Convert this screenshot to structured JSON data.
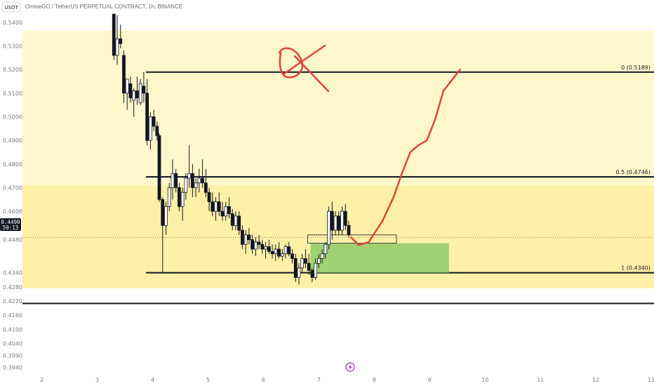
{
  "header": {
    "title": "OmiseGO / TetherUS PERPETUAL CONTRACT, 1h, BINANCE",
    "unit": "USDT"
  },
  "price_tag": {
    "price": "0.4490",
    "countdown": "59:13"
  },
  "colors": {
    "zone_upper": "#fff7cc",
    "zone_lower": "#fff0a8",
    "green_box": "#8fcc6a",
    "pen": "#e0443a",
    "candle": "#131722",
    "current_line": "#131722"
  },
  "icons": {
    "bottom": "lightning-icon"
  },
  "chart_data": {
    "type": "candlestick",
    "title": "OmiseGO / TetherUS PERPETUAL CONTRACT, 1h, BINANCE",
    "y_range": [
      0.392,
      0.5435
    ],
    "x_range": [
      1.65,
      13.05
    ],
    "y_ticks": [
      "0.5400",
      "0.5300",
      "0.5200",
      "0.5100",
      "0.5000",
      "0.4900",
      "0.4800",
      "0.4700",
      "0.4600",
      "0.4480",
      "0.4340",
      "0.4280",
      "0.4220",
      "0.4160",
      "0.4100",
      "0.4040",
      "0.3990",
      "0.3940"
    ],
    "x_ticks": [
      "2",
      "3",
      "4",
      "5",
      "6",
      "7",
      "8",
      "9",
      "10",
      "11",
      "12",
      "13"
    ],
    "current_price": 0.449,
    "zones": [
      {
        "name": "upper-zone",
        "x": [
          1.65,
          13.05
        ],
        "y": [
          0.4275,
          0.5365
        ],
        "color": "#fff7cc"
      },
      {
        "name": "lower-zone",
        "x": [
          1.65,
          13.05
        ],
        "y": [
          0.4275,
          0.471
        ],
        "color": "#fff0a8"
      }
    ],
    "fib_levels": [
      {
        "label": "0 (0.5189)",
        "price": 0.5189,
        "x_start": 3.88
      },
      {
        "label": "0.5 (0.4746)",
        "price": 0.4746,
        "x_start": 3.88
      },
      {
        "label": "1 (0.4340)",
        "price": 0.434,
        "x_start": 3.88
      }
    ],
    "support_line": {
      "price": 0.421,
      "x_start": 1.65
    },
    "green_box": {
      "x": [
        6.85,
        9.35
      ],
      "y": [
        0.434,
        0.4465
      ]
    },
    "range_box": {
      "x": [
        6.8,
        8.4
      ],
      "y": [
        0.4465,
        0.45
      ]
    },
    "drawing_path": [
      [
        7.58,
        0.449
      ],
      [
        7.72,
        0.4457
      ],
      [
        7.9,
        0.447
      ],
      [
        8.15,
        0.456
      ],
      [
        8.35,
        0.466
      ],
      [
        8.5,
        0.476
      ],
      [
        8.65,
        0.485
      ],
      [
        8.8,
        0.488
      ],
      [
        8.95,
        0.49
      ],
      [
        9.1,
        0.499
      ],
      [
        9.25,
        0.511
      ],
      [
        9.45,
        0.517
      ],
      [
        9.55,
        0.52
      ]
    ],
    "x_mark": [
      [
        [
          8.0,
          0.5128
        ],
        [
          9.35,
          0.5306
        ]
      ]
    ],
    "candles": [
      [
        3.3,
        0.5435,
        0.5435,
        0.524,
        0.526
      ],
      [
        3.36,
        0.526,
        0.543,
        0.522,
        0.533
      ],
      [
        3.42,
        0.533,
        0.539,
        0.529,
        0.531
      ],
      [
        3.48,
        0.526,
        0.528,
        0.506,
        0.51
      ],
      [
        3.54,
        0.51,
        0.516,
        0.503,
        0.516
      ],
      [
        3.6,
        0.514,
        0.517,
        0.506,
        0.508
      ],
      [
        3.66,
        0.507,
        0.512,
        0.5,
        0.511
      ],
      [
        3.72,
        0.511,
        0.517,
        0.505,
        0.508
      ],
      [
        3.78,
        0.506,
        0.516,
        0.505,
        0.514
      ],
      [
        3.84,
        0.513,
        0.519,
        0.506,
        0.51
      ],
      [
        3.9,
        0.51,
        0.516,
        0.488,
        0.49
      ],
      [
        3.96,
        0.49,
        0.502,
        0.486,
        0.5
      ],
      [
        4.02,
        0.5,
        0.503,
        0.494,
        0.496
      ],
      [
        4.08,
        0.496,
        0.498,
        0.49,
        0.492
      ],
      [
        4.12,
        0.492,
        0.493,
        0.464,
        0.465
      ],
      [
        4.18,
        0.465,
        0.466,
        0.434,
        0.454
      ],
      [
        4.24,
        0.454,
        0.464,
        0.45,
        0.462
      ],
      [
        4.3,
        0.462,
        0.472,
        0.46,
        0.47
      ],
      [
        4.36,
        0.47,
        0.482,
        0.465,
        0.476
      ],
      [
        4.42,
        0.476,
        0.478,
        0.468,
        0.47
      ],
      [
        4.48,
        0.47,
        0.472,
        0.46,
        0.462
      ],
      [
        4.54,
        0.462,
        0.47,
        0.456,
        0.468
      ],
      [
        4.6,
        0.468,
        0.476,
        0.465,
        0.474
      ],
      [
        4.66,
        0.474,
        0.488,
        0.47,
        0.476
      ],
      [
        4.72,
        0.476,
        0.48,
        0.466,
        0.47
      ],
      [
        4.78,
        0.47,
        0.474,
        0.466,
        0.472
      ],
      [
        4.84,
        0.472,
        0.478,
        0.468,
        0.474
      ],
      [
        4.9,
        0.474,
        0.482,
        0.47,
        0.472
      ],
      [
        4.96,
        0.472,
        0.478,
        0.466,
        0.468
      ],
      [
        5.02,
        0.468,
        0.47,
        0.46,
        0.464
      ],
      [
        5.08,
        0.464,
        0.468,
        0.458,
        0.46
      ],
      [
        5.14,
        0.46,
        0.466,
        0.456,
        0.464
      ],
      [
        5.2,
        0.464,
        0.468,
        0.458,
        0.46
      ],
      [
        5.26,
        0.46,
        0.464,
        0.456,
        0.458
      ],
      [
        5.32,
        0.458,
        0.464,
        0.456,
        0.462
      ],
      [
        5.38,
        0.462,
        0.466,
        0.457,
        0.459
      ],
      [
        5.44,
        0.459,
        0.461,
        0.452,
        0.454
      ],
      [
        5.5,
        0.454,
        0.46,
        0.452,
        0.458
      ],
      [
        5.56,
        0.458,
        0.46,
        0.45,
        0.452
      ],
      [
        5.62,
        0.452,
        0.454,
        0.444,
        0.446
      ],
      [
        5.68,
        0.446,
        0.452,
        0.442,
        0.45
      ],
      [
        5.74,
        0.45,
        0.453,
        0.446,
        0.448
      ],
      [
        5.8,
        0.448,
        0.45,
        0.442,
        0.444
      ],
      [
        5.86,
        0.444,
        0.449,
        0.441,
        0.447
      ],
      [
        5.92,
        0.447,
        0.45,
        0.444,
        0.446
      ],
      [
        5.98,
        0.446,
        0.448,
        0.442,
        0.444
      ],
      [
        6.04,
        0.444,
        0.447,
        0.44,
        0.445
      ],
      [
        6.1,
        0.445,
        0.448,
        0.442,
        0.443
      ],
      [
        6.16,
        0.443,
        0.446,
        0.44,
        0.442
      ],
      [
        6.22,
        0.442,
        0.446,
        0.439,
        0.444
      ],
      [
        6.28,
        0.444,
        0.447,
        0.44,
        0.441
      ],
      [
        6.34,
        0.441,
        0.444,
        0.439,
        0.442
      ],
      [
        6.4,
        0.442,
        0.446,
        0.44,
        0.445
      ],
      [
        6.46,
        0.445,
        0.447,
        0.441,
        0.442
      ],
      [
        6.52,
        0.442,
        0.444,
        0.438,
        0.44
      ],
      [
        6.58,
        0.44,
        0.442,
        0.43,
        0.432
      ],
      [
        6.64,
        0.432,
        0.438,
        0.429,
        0.436
      ],
      [
        6.7,
        0.436,
        0.442,
        0.434,
        0.44
      ],
      [
        6.76,
        0.44,
        0.444,
        0.436,
        0.438
      ],
      [
        6.82,
        0.438,
        0.442,
        0.433,
        0.435
      ],
      [
        6.88,
        0.435,
        0.436,
        0.43,
        0.432
      ],
      [
        6.94,
        0.432,
        0.44,
        0.431,
        0.438
      ],
      [
        7.0,
        0.438,
        0.442,
        0.436,
        0.44
      ],
      [
        7.06,
        0.44,
        0.444,
        0.438,
        0.442
      ],
      [
        7.12,
        0.442,
        0.447,
        0.44,
        0.446
      ],
      [
        7.18,
        0.446,
        0.462,
        0.444,
        0.46
      ],
      [
        7.24,
        0.46,
        0.464,
        0.448,
        0.452
      ],
      [
        7.3,
        0.452,
        0.46,
        0.45,
        0.458
      ],
      [
        7.36,
        0.458,
        0.46,
        0.45,
        0.452
      ],
      [
        7.42,
        0.452,
        0.462,
        0.45,
        0.46
      ],
      [
        7.48,
        0.46,
        0.463,
        0.452,
        0.454
      ],
      [
        7.54,
        0.454,
        0.456,
        0.449,
        0.45
      ]
    ]
  }
}
